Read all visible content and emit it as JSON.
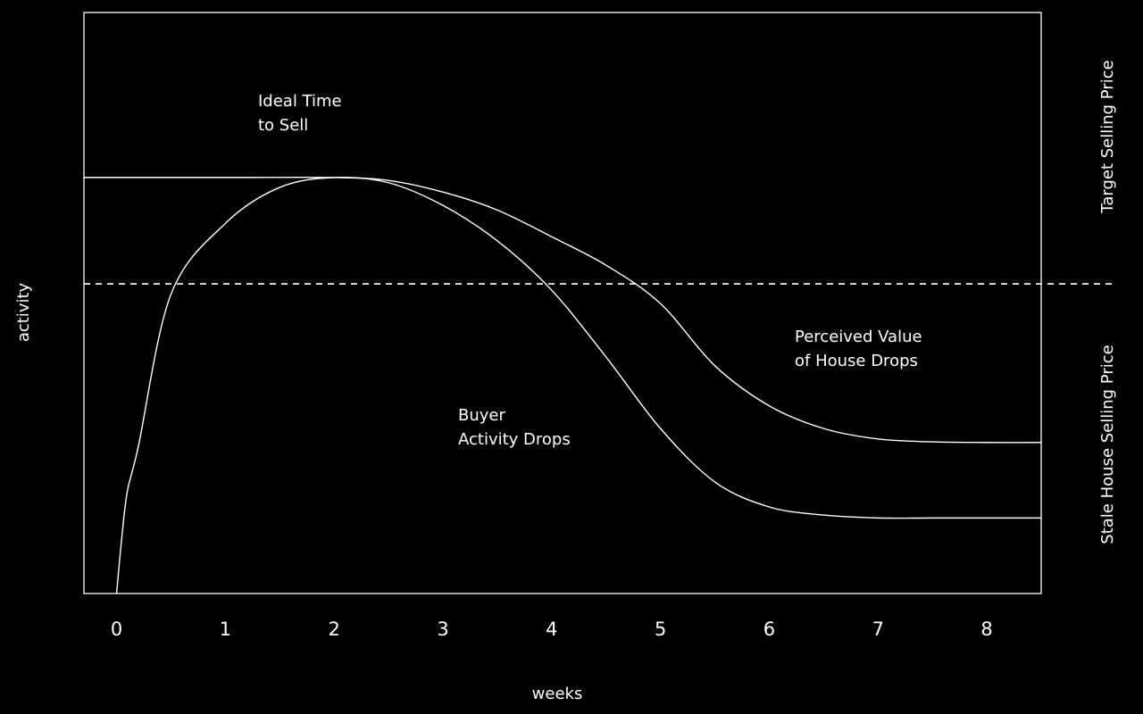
{
  "chart_data": {
    "type": "line",
    "x_label": "weeks",
    "y_label": "activity",
    "right_labels": [
      "Target Selling Price",
      "Stale House Selling Price"
    ],
    "xlim": [
      -0.3,
      8.5
    ],
    "ylim": [
      0,
      100
    ],
    "xticks": [
      0,
      1,
      2,
      3,
      4,
      5,
      6,
      7,
      8
    ],
    "grid": false,
    "reference_line": {
      "value": 53.3,
      "style": "dashed"
    },
    "series": [
      {
        "color": "#ffffff",
        "x": [
          -0.3,
          0,
          1,
          2,
          2.5,
          3,
          3.5,
          4,
          4.5,
          5,
          5.5,
          6,
          6.5,
          7,
          7.5,
          8,
          8.5
        ],
        "values": [
          71.6,
          71.6,
          71.6,
          71.6,
          71.1,
          69.1,
          66,
          61.4,
          56.5,
          49.9,
          39.2,
          32.3,
          28.4,
          26.6,
          26.1,
          26,
          26
        ]
      },
      {
        "color": "#ffffff",
        "x": [
          0,
          0.05,
          0.1,
          0.2,
          0.5,
          1,
          1.5,
          2,
          2.5,
          3,
          3.5,
          4,
          4.5,
          5,
          5.5,
          6,
          6.5,
          7,
          7.5,
          8,
          8.5
        ],
        "values": [
          0,
          10,
          17.7,
          25.3,
          51.5,
          63.7,
          69.9,
          71.6,
          70.7,
          66.8,
          60.7,
          52.2,
          40.7,
          28.4,
          19.2,
          14.9,
          13.5,
          13,
          13,
          13,
          13
        ]
      }
    ],
    "annotations": [
      [
        "Ideal Time",
        "to Sell"
      ],
      [
        "Perceived Value",
        "of House Drops"
      ],
      [
        "Buyer",
        "Activity Drops"
      ]
    ]
  }
}
